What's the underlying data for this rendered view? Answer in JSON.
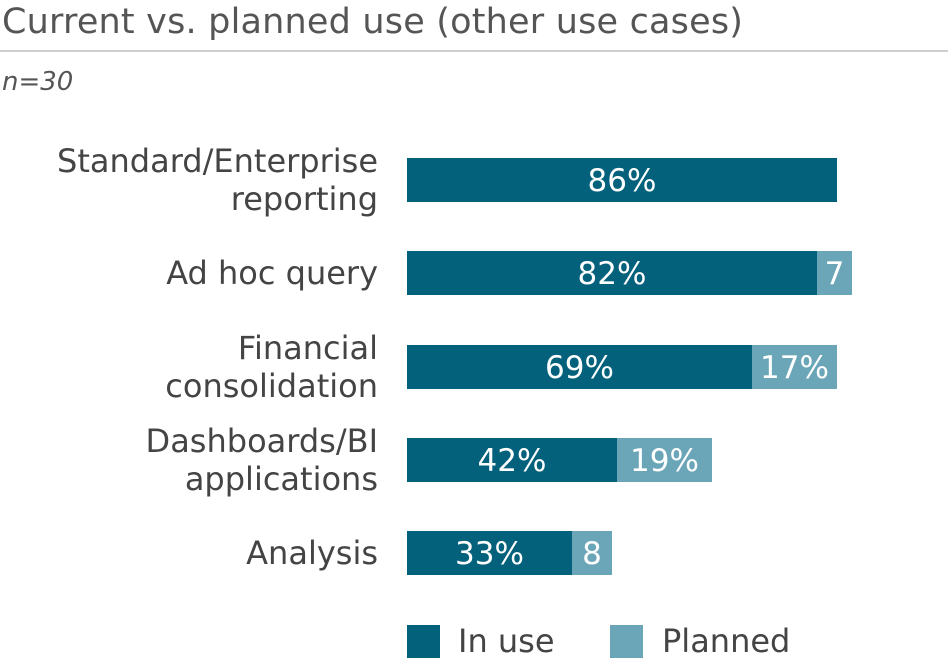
{
  "header": {
    "title": "Current vs. planned use (other use cases)",
    "sample": "n=30"
  },
  "colors": {
    "in_use": "#03617c",
    "planned": "#6ba6b8"
  },
  "chart_data": {
    "type": "bar",
    "orientation": "horizontal",
    "stacked": true,
    "title": "Current vs. planned use (other use cases)",
    "subtitle": "n=30",
    "categories": [
      [
        "Standard/Enterprise",
        "reporting"
      ],
      [
        "Ad hoc query"
      ],
      [
        "Financial",
        "consolidation"
      ],
      [
        "Dashboards/BI",
        "applications"
      ],
      [
        "Analysis"
      ]
    ],
    "series": [
      {
        "name": "In use",
        "values": [
          86,
          82,
          69,
          42,
          33
        ],
        "labels": [
          "86%",
          "82%",
          "69%",
          "42%",
          "33%"
        ]
      },
      {
        "name": "Planned",
        "values": [
          0,
          7,
          17,
          19,
          8
        ],
        "labels": [
          "",
          "7",
          "17%",
          "19%",
          "8"
        ]
      }
    ],
    "xlim": [
      0,
      100
    ],
    "xlabel": "",
    "ylabel": "",
    "grid": false,
    "legend": "bottom"
  }
}
